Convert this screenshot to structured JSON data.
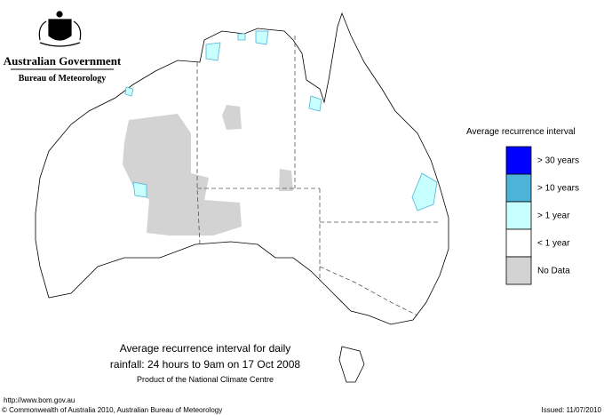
{
  "header": {
    "title": "Australian Government",
    "subtitle": "Bureau of Meteorology"
  },
  "legend": {
    "title": "Average recurrence interval",
    "items": [
      {
        "label": "> 30 years",
        "color": "#0000ff"
      },
      {
        "label": "> 10 years",
        "color": "#4eb3d8"
      },
      {
        "label": "> 1 year",
        "color": "#c8ffff"
      },
      {
        "label": "< 1 year",
        "color": "#ffffff"
      },
      {
        "label": "No Data",
        "color": "#d3d3d3"
      }
    ]
  },
  "caption": {
    "line1": "Average recurrence interval for daily",
    "line2": "rainfall: 24 hours to 9am on 17 Oct 2008",
    "line3": "Product of the National Climate Centre"
  },
  "footer": {
    "url": "http://www.bom.gov.au",
    "copyright": "© Commonwealth of Australia 2010, Australian Bureau of Meteorology",
    "issued": "Issued: 11/07/2010"
  }
}
